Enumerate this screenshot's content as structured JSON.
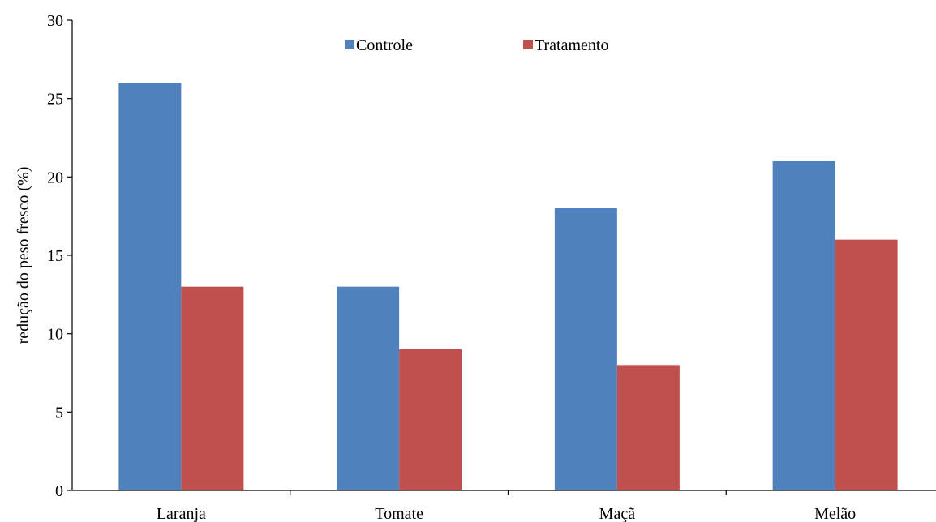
{
  "chart_data": {
    "type": "bar",
    "categories": [
      "Laranja",
      "Tomate",
      "Maçã",
      "Melão"
    ],
    "series": [
      {
        "name": "Controle",
        "values": [
          26,
          13,
          18,
          21
        ],
        "color": "#4F81BD"
      },
      {
        "name": "Tratamento",
        "values": [
          13,
          9,
          8,
          16
        ],
        "color": "#C0504D"
      }
    ],
    "title": "",
    "xlabel": "",
    "ylabel": "redução do peso fresco (%)",
    "ylim": [
      0,
      30
    ],
    "yticks": [
      0,
      5,
      10,
      15,
      20,
      25,
      30
    ],
    "grid": false,
    "legend": "top-center"
  }
}
